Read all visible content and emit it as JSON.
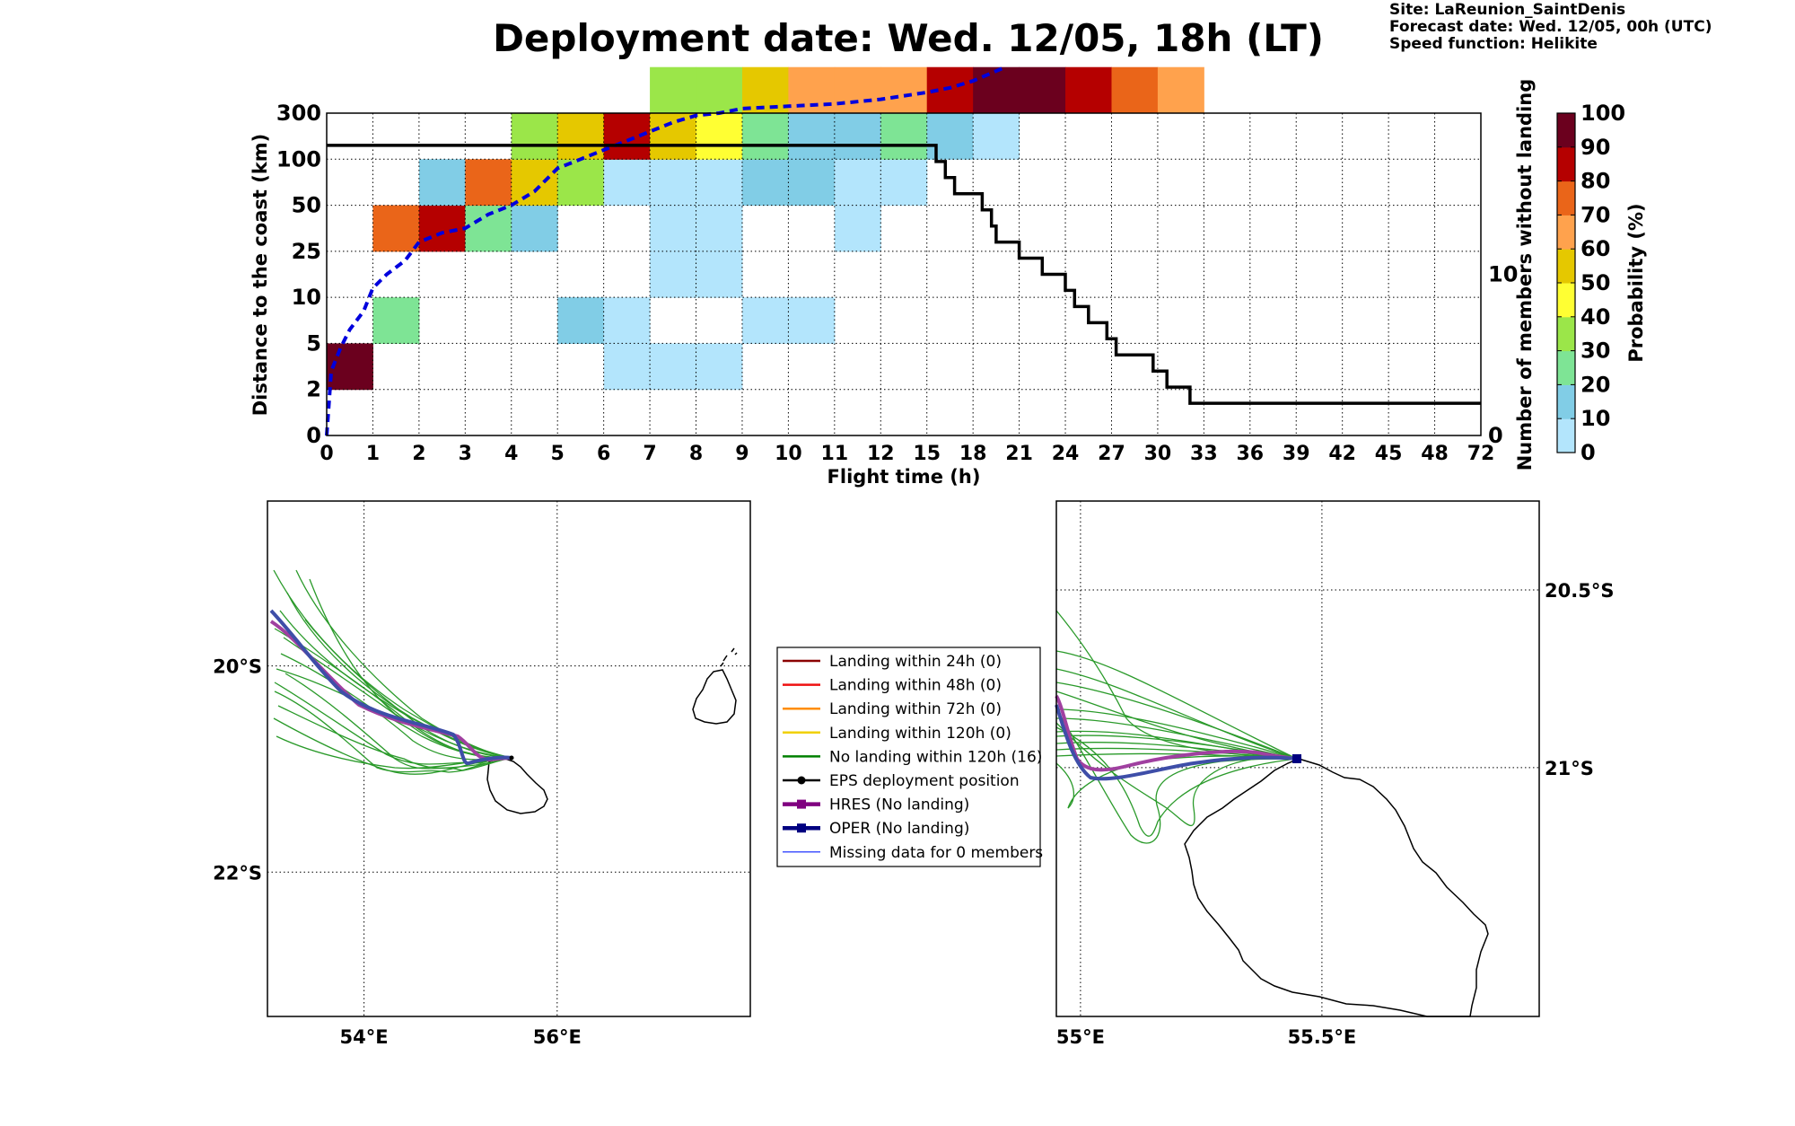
{
  "header": {
    "title": "Deployment date: Wed. 12/05, 18h (LT)",
    "site_line": "Site: LaReunion_SaintDenis",
    "forecast_line": "Forecast date: Wed. 12/05, 00h (UTC)",
    "speed_line": "Speed function: Helikite"
  },
  "chart_data": [
    {
      "type": "heatmap",
      "xlabel": "Flight time (h)",
      "ylabel": "Distance to the coast (km)",
      "y2label": "Number of members without landing",
      "colorbar_label": "Probability (%)",
      "x_ticks": [
        "0",
        "1",
        "2",
        "3",
        "4",
        "5",
        "6",
        "7",
        "8",
        "9",
        "10",
        "11",
        "12",
        "15",
        "18",
        "21",
        "24",
        "27",
        "30",
        "33",
        "36",
        "39",
        "42",
        "45",
        "48",
        "72"
      ],
      "y_ticks": [
        "0",
        "2",
        "5",
        "10",
        "25",
        "50",
        "100",
        "300"
      ],
      "y2_ticks": [
        "0",
        "10"
      ],
      "y2lim": [
        0,
        20
      ],
      "colorbar_ticks": [
        "0",
        "10",
        "20",
        "30",
        "40",
        "50",
        "60",
        "70",
        "80",
        "90",
        "100"
      ],
      "colorbar_colors": [
        "#b3e5fc",
        "#81cde6",
        "#7ee495",
        "#9be649",
        "#ffff33",
        "#e5c800",
        "#ffa24d",
        "#ea6519",
        "#b50000",
        "#6b001e"
      ],
      "grid": true,
      "cells": [
        {
          "x": 0,
          "y": 1,
          "v": 100
        },
        {
          "x": 1,
          "y": 2,
          "v": 20
        },
        {
          "x": 1,
          "y": 4,
          "v": 70
        },
        {
          "x": 2,
          "y": 4,
          "v": 80
        },
        {
          "x": 2,
          "y": 5,
          "v": 10
        },
        {
          "x": 3,
          "y": 4,
          "v": 20
        },
        {
          "x": 3,
          "y": 5,
          "v": 70
        },
        {
          "x": 4,
          "y": 4,
          "v": 10
        },
        {
          "x": 4,
          "y": 5,
          "v": 50
        },
        {
          "x": 4,
          "y": 6,
          "v": 30
        },
        {
          "x": 5,
          "y": 2,
          "v": 10
        },
        {
          "x": 5,
          "y": 5,
          "v": 30
        },
        {
          "x": 5,
          "y": 6,
          "v": 50
        },
        {
          "x": 6,
          "y": 1,
          "v": 0
        },
        {
          "x": 6,
          "y": 2,
          "v": 0
        },
        {
          "x": 6,
          "y": 5,
          "v": 0
        },
        {
          "x": 6,
          "y": 6,
          "v": 80
        },
        {
          "x": 7,
          "y": 1,
          "v": 0
        },
        {
          "x": 7,
          "y": 3,
          "v": 0
        },
        {
          "x": 7,
          "y": 4,
          "v": 0
        },
        {
          "x": 7,
          "y": 5,
          "v": 0
        },
        {
          "x": 7,
          "y": 6,
          "v": 50
        },
        {
          "x": 7,
          "y": 7,
          "v": 30
        },
        {
          "x": 8,
          "y": 1,
          "v": 0
        },
        {
          "x": 8,
          "y": 3,
          "v": 0
        },
        {
          "x": 8,
          "y": 4,
          "v": 0
        },
        {
          "x": 8,
          "y": 5,
          "v": 0
        },
        {
          "x": 8,
          "y": 6,
          "v": 40
        },
        {
          "x": 8,
          "y": 7,
          "v": 30
        },
        {
          "x": 9,
          "y": 2,
          "v": 0
        },
        {
          "x": 9,
          "y": 5,
          "v": 10
        },
        {
          "x": 9,
          "y": 6,
          "v": 20
        },
        {
          "x": 9,
          "y": 7,
          "v": 50
        },
        {
          "x": 10,
          "y": 2,
          "v": 0
        },
        {
          "x": 10,
          "y": 5,
          "v": 10
        },
        {
          "x": 10,
          "y": 6,
          "v": 10
        },
        {
          "x": 10,
          "y": 7,
          "v": 60
        },
        {
          "x": 11,
          "y": 4,
          "v": 0
        },
        {
          "x": 11,
          "y": 5,
          "v": 0
        },
        {
          "x": 11,
          "y": 6,
          "v": 10
        },
        {
          "x": 11,
          "y": 7,
          "v": 60
        },
        {
          "x": 12,
          "y": 5,
          "v": 0
        },
        {
          "x": 12,
          "y": 6,
          "v": 20
        },
        {
          "x": 12,
          "y": 7,
          "v": 60
        },
        {
          "x": 13,
          "y": 6,
          "v": 10
        },
        {
          "x": 13,
          "y": 7,
          "v": 80
        },
        {
          "x": 14,
          "y": 6,
          "v": 0
        },
        {
          "x": 14,
          "y": 7,
          "v": 100
        },
        {
          "x": 15,
          "y": 7,
          "v": 100
        },
        {
          "x": 16,
          "y": 7,
          "v": 80
        },
        {
          "x": 17,
          "y": 7,
          "v": 70
        },
        {
          "x": 18,
          "y": 7,
          "v": 60
        }
      ],
      "series": [
        {
          "name": "",
          "style": "dashed",
          "color": "#0000dd",
          "points": [
            [
              0,
              0
            ],
            [
              0.1,
              1.4
            ],
            [
              0.3,
              1.9
            ],
            [
              0.5,
              2.3
            ],
            [
              0.8,
              2.7
            ],
            [
              1,
              3.2
            ],
            [
              1.3,
              3.5
            ],
            [
              1.7,
              3.8
            ],
            [
              2,
              4.2
            ],
            [
              2.5,
              4.4
            ],
            [
              3,
              4.5
            ],
            [
              3.5,
              4.8
            ],
            [
              4,
              5
            ],
            [
              4.5,
              5.3
            ],
            [
              5,
              5.8
            ],
            [
              5.5,
              6
            ],
            [
              6,
              6.2
            ],
            [
              6.5,
              6.4
            ],
            [
              7,
              6.6
            ],
            [
              7.5,
              6.8
            ],
            [
              8,
              6.95
            ],
            [
              8.5,
              7
            ],
            [
              9,
              7.1
            ],
            [
              10,
              7.15
            ],
            [
              11,
              7.2
            ],
            [
              12,
              7.3
            ],
            [
              13,
              7.45
            ],
            [
              13.5,
              7.55
            ],
            [
              14,
              7.7
            ],
            [
              14.7,
              8
            ]
          ]
        },
        {
          "name": "",
          "style": "step",
          "color": "#000000",
          "axis": "y2",
          "points": [
            [
              0,
              18
            ],
            [
              13.2,
              18
            ],
            [
              13.2,
              17
            ],
            [
              13.4,
              17
            ],
            [
              13.4,
              16
            ],
            [
              13.6,
              16
            ],
            [
              13.6,
              15
            ],
            [
              14.2,
              15
            ],
            [
              14.2,
              14
            ],
            [
              14.4,
              14
            ],
            [
              14.4,
              13
            ],
            [
              14.5,
              13
            ],
            [
              14.5,
              12
            ],
            [
              15,
              12
            ],
            [
              15,
              11
            ],
            [
              15.5,
              11
            ],
            [
              15.5,
              10
            ],
            [
              16,
              10
            ],
            [
              16,
              9
            ],
            [
              16.2,
              9
            ],
            [
              16.2,
              8
            ],
            [
              16.5,
              8
            ],
            [
              16.5,
              7
            ],
            [
              16.9,
              7
            ],
            [
              16.9,
              6
            ],
            [
              17.1,
              6
            ],
            [
              17.1,
              5
            ],
            [
              17.9,
              5
            ],
            [
              17.9,
              4
            ],
            [
              18.2,
              4
            ],
            [
              18.2,
              3
            ],
            [
              18.7,
              3
            ],
            [
              18.7,
              2
            ],
            [
              25,
              2
            ]
          ]
        }
      ]
    },
    {
      "type": "map",
      "x_ticks": [
        "54°E",
        "56°E"
      ],
      "y_ticks": [
        "20°S",
        "22°S"
      ],
      "lon_range": [
        53,
        58
      ],
      "lat_range": [
        -23.4,
        -18.4
      ],
      "grid": true
    },
    {
      "type": "map",
      "x_ticks": [
        "55°E",
        "55.5°E"
      ],
      "y_ticks": [
        "20.5°S",
        "21°S"
      ],
      "lon_range": [
        54.95,
        55.95
      ],
      "lat_range": [
        -21.7,
        -20.25
      ],
      "grid": true
    }
  ],
  "legend": {
    "items": [
      {
        "label": "Landing within 24h (0)",
        "color": "#8b0000",
        "marker": "none",
        "width": 2
      },
      {
        "label": "Landing within 48h (0)",
        "color": "#ee1111",
        "marker": "none",
        "width": 2
      },
      {
        "label": "Landing within 72h (0)",
        "color": "#ff8c00",
        "marker": "none",
        "width": 2
      },
      {
        "label": "Landing within 120h (0)",
        "color": "#f0d000",
        "marker": "none",
        "width": 2
      },
      {
        "label": "No landing within 120h (16)",
        "color": "#008000",
        "marker": "none",
        "width": 2
      },
      {
        "label": "EPS deployment position",
        "color": "#000000",
        "marker": "circle",
        "width": 2
      },
      {
        "label": "HRES (No landing)",
        "color": "#800080",
        "marker": "square",
        "width": 4
      },
      {
        "label": "OPER (No landing)",
        "color": "#000080",
        "marker": "square",
        "width": 4
      },
      {
        "label": "Missing data for 0 members",
        "color": "#4455ff",
        "marker": "none",
        "width": 1
      }
    ]
  }
}
